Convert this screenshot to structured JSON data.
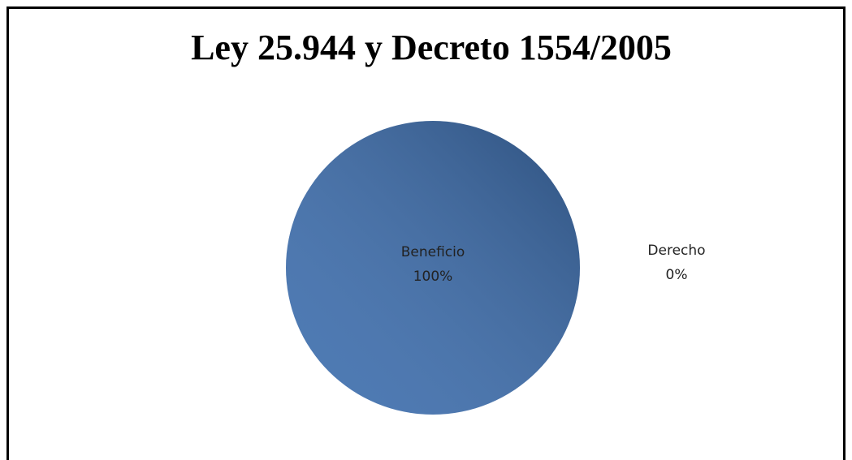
{
  "chart_data": {
    "type": "pie",
    "title": "Ley 25.944 y Decreto 1554/2005",
    "categories": [
      "Beneficio",
      "Derecho"
    ],
    "values": [
      100,
      0
    ],
    "value_labels": [
      "100%",
      "0%"
    ],
    "colors": [
      "#3d6eae",
      "#a5a5a5"
    ]
  }
}
